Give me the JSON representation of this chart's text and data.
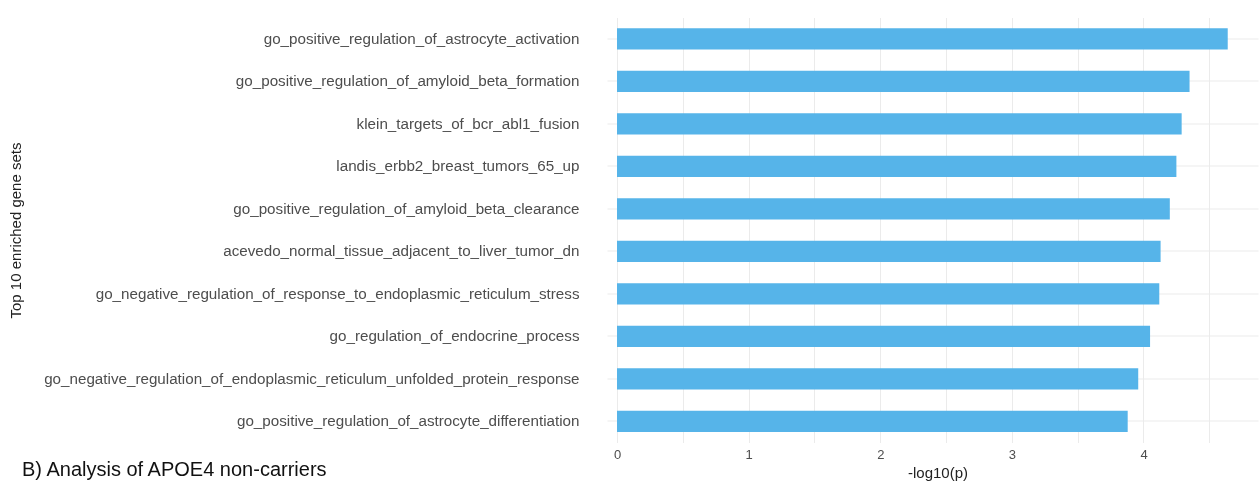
{
  "chart_data": {
    "type": "bar",
    "orientation": "horizontal",
    "xlabel": "-log10(p)",
    "ylabel": "Top 10 enriched gene sets",
    "categories": [
      "go_positive_regulation_of_astrocyte_activation",
      "go_positive_regulation_of_amyloid_beta_formation",
      "klein_targets_of_bcr_abl1_fusion",
      "landis_erbb2_breast_tumors_65_up",
      "go_positive_regulation_of_amyloid_beta_clearance",
      "acevedo_normal_tissue_adjacent_to_liver_tumor_dn",
      "go_negative_regulation_of_response_to_endoplasmic_reticulum_stress",
      "go_regulation_of_endocrine_process",
      "go_negative_regulation_of_endoplasmic_reticulum_unfolded_protein_response",
      "go_positive_regulation_of_astrocyte_differentiation"
    ],
    "values": [
      4.64,
      4.35,
      4.29,
      4.25,
      4.2,
      4.13,
      4.12,
      4.05,
      3.96,
      3.88
    ],
    "color": "#56b4e9",
    "xlim": [
      0,
      4.87
    ],
    "xticks": [
      0,
      {
        "value": 0.5,
        "label": null
      },
      1,
      {
        "value": 1.5,
        "label": null
      },
      2,
      {
        "value": 2.5,
        "label": null
      },
      3,
      {
        "value": 3.5,
        "label": null
      },
      4,
      {
        "value": 4.5,
        "label": null
      }
    ],
    "grid": true,
    "annotations": [
      "B)  Analysis of APOE4 non-carriers"
    ]
  }
}
